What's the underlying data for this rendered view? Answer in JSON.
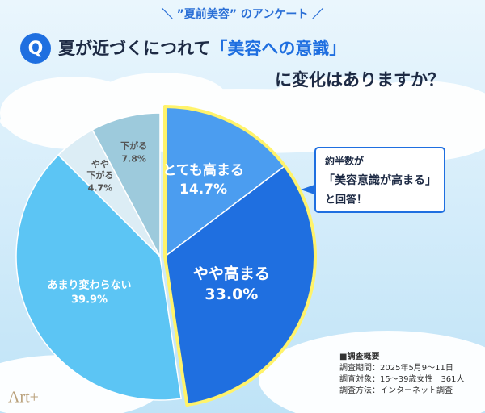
{
  "chart_data": {
    "type": "pie",
    "header": "＼ ”夏前美容” のアンケート ／",
    "question_mark": "Q",
    "question": [
      "夏が近づくにつれて",
      "「美容への意識」",
      "に変化はありますか？"
    ],
    "categories": [
      "とても高まる",
      "やや高まる",
      "あまり変わらない",
      "やや\n下がる",
      "下がる"
    ],
    "values": [
      14.7,
      33.0,
      39.9,
      4.7,
      7.8
    ],
    "value_labels": [
      "14.7%",
      "33.0%",
      "39.9%",
      "4.7%",
      "7.8%"
    ],
    "colors": [
      "#4b9df0",
      "#1f6fe0",
      "#5cc5f4",
      "#dcedf5",
      "#9dcadc"
    ],
    "highlight": [
      0,
      1
    ],
    "callout": [
      "約半数が",
      "「美容意識が高まる」",
      "と回答！"
    ],
    "notes": [
      "■調査概要",
      "調査期間：2025年5月9～11日",
      "調査対象：15～39歳女性　361人",
      "調査方法：インターネット調査"
    ],
    "logo": "Art+"
  }
}
